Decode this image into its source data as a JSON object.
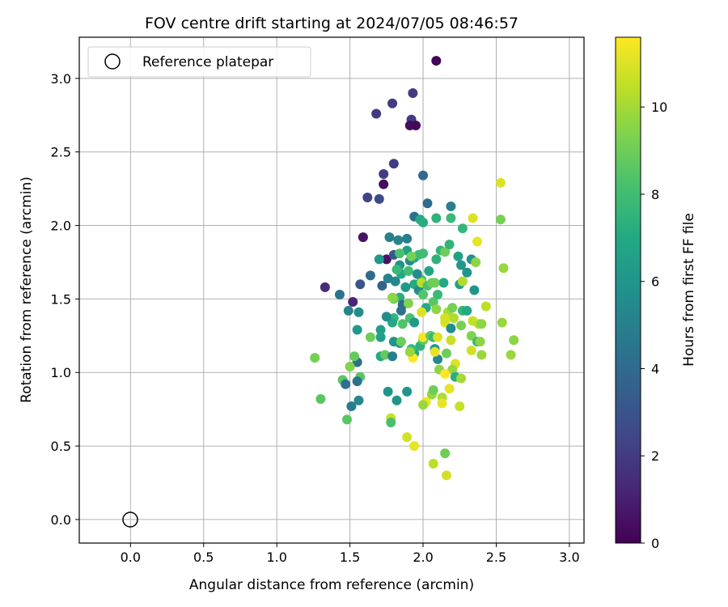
{
  "chart_data": {
    "type": "scatter",
    "title": "FOV centre drift starting at 2024/07/05 08:46:57",
    "xlabel": "Angular distance from reference (arcmin)",
    "ylabel": "Rotation from reference (arcmin)",
    "xlim": [
      -0.35,
      3.1
    ],
    "ylim": [
      -0.16,
      3.28
    ],
    "xticks": [
      "0.0",
      "0.5",
      "1.0",
      "1.5",
      "2.0",
      "2.5",
      "3.0"
    ],
    "yticks": [
      "0.0",
      "0.5",
      "1.0",
      "1.5",
      "2.0",
      "2.5",
      "3.0"
    ],
    "grid": true,
    "legend": {
      "placement": "top-left",
      "entries": [
        "Reference platepar"
      ]
    },
    "reference_point": {
      "x": 0.0,
      "y": 0.0,
      "marker": "open-circle",
      "label": "Reference platepar"
    },
    "colorbar": {
      "label": "Hours from first FF file",
      "range": [
        0,
        11.6
      ],
      "ticks": [
        "0",
        "2",
        "4",
        "6",
        "8",
        "10"
      ],
      "colormap": "viridis"
    },
    "points": [
      [
        2.09,
        3.12,
        0.1
      ],
      [
        1.68,
        2.76,
        2.0
      ],
      [
        1.79,
        2.83,
        2.0
      ],
      [
        1.93,
        2.9,
        2.0
      ],
      [
        1.92,
        2.72,
        2.0
      ],
      [
        1.91,
        2.68,
        0.4
      ],
      [
        1.95,
        2.68,
        0.3
      ],
      [
        1.8,
        2.42,
        2.0
      ],
      [
        1.73,
        2.35,
        2.0
      ],
      [
        1.73,
        2.28,
        0.4
      ],
      [
        1.62,
        2.19,
        2.3
      ],
      [
        1.7,
        2.18,
        2.6
      ],
      [
        2.0,
        2.34,
        4.0
      ],
      [
        2.03,
        2.15,
        4.0
      ],
      [
        2.19,
        2.13,
        5.0
      ],
      [
        1.94,
        2.06,
        4.4
      ],
      [
        1.98,
        2.04,
        7.0
      ],
      [
        2.0,
        2.02,
        7.2
      ],
      [
        2.09,
        2.05,
        7.4
      ],
      [
        2.19,
        2.05,
        7.8
      ],
      [
        2.34,
        2.05,
        11.0
      ],
      [
        2.53,
        2.29,
        11.0
      ],
      [
        2.53,
        2.04,
        9.2
      ],
      [
        2.37,
        1.89,
        11.2
      ],
      [
        2.55,
        1.71,
        9.8
      ],
      [
        2.27,
        1.98,
        7.6
      ],
      [
        1.59,
        1.92,
        0.6
      ],
      [
        1.75,
        1.77,
        0.6
      ],
      [
        1.33,
        1.58,
        1.4
      ],
      [
        1.52,
        1.48,
        1.2
      ],
      [
        1.57,
        1.6,
        3.0
      ],
      [
        1.43,
        1.53,
        4.4
      ],
      [
        1.64,
        1.66,
        4.0
      ],
      [
        1.72,
        1.59,
        3.6
      ],
      [
        1.8,
        1.8,
        3.2
      ],
      [
        1.83,
        1.9,
        5.2
      ],
      [
        1.77,
        1.92,
        5.0
      ],
      [
        1.7,
        1.77,
        6.2
      ],
      [
        1.84,
        1.73,
        6.0
      ],
      [
        1.91,
        1.76,
        5.6
      ],
      [
        1.89,
        1.83,
        6.6
      ],
      [
        1.94,
        1.78,
        6.6
      ],
      [
        1.97,
        1.8,
        7.8
      ],
      [
        2.04,
        1.69,
        6.8
      ],
      [
        2.09,
        1.77,
        7.4
      ],
      [
        2.12,
        1.83,
        7.6
      ],
      [
        2.15,
        1.82,
        9.0
      ],
      [
        2.18,
        1.87,
        7.5
      ],
      [
        2.24,
        1.79,
        6.6
      ],
      [
        2.26,
        1.73,
        6.2
      ],
      [
        2.3,
        1.68,
        6.0
      ],
      [
        2.33,
        1.77,
        5.8
      ],
      [
        2.36,
        1.75,
        9.6
      ],
      [
        2.35,
        1.56,
        6.0
      ],
      [
        2.25,
        1.6,
        6.6
      ],
      [
        2.14,
        1.61,
        7.0
      ],
      [
        2.08,
        1.61,
        9.0
      ],
      [
        1.99,
        1.63,
        8.2
      ],
      [
        1.94,
        1.6,
        7.0
      ],
      [
        1.88,
        1.58,
        6.2
      ],
      [
        1.81,
        1.62,
        5.4
      ],
      [
        1.76,
        1.64,
        5.2
      ],
      [
        1.85,
        1.67,
        7.0
      ],
      [
        1.82,
        1.7,
        7.8
      ],
      [
        1.9,
        1.69,
        8.0
      ],
      [
        1.97,
        1.56,
        5.6
      ],
      [
        1.84,
        1.51,
        7.2
      ],
      [
        1.8,
        1.5,
        9.0
      ],
      [
        1.86,
        1.46,
        4.0
      ],
      [
        1.85,
        1.42,
        4.2
      ],
      [
        1.9,
        1.47,
        9.4
      ],
      [
        1.91,
        1.37,
        8.2
      ],
      [
        2.02,
        1.44,
        7.0
      ],
      [
        2.07,
        1.48,
        8.6
      ],
      [
        2.09,
        1.43,
        9.6
      ],
      [
        1.99,
        1.41,
        11.0
      ],
      [
        2.17,
        1.41,
        10.0
      ],
      [
        2.2,
        1.44,
        9.2
      ],
      [
        2.21,
        1.37,
        10.2
      ],
      [
        2.15,
        1.34,
        11.0
      ],
      [
        2.19,
        1.3,
        5.6
      ],
      [
        2.26,
        1.32,
        9.2
      ],
      [
        2.27,
        1.42,
        7.6
      ],
      [
        2.3,
        1.42,
        7.0
      ],
      [
        2.34,
        1.35,
        10.6
      ],
      [
        2.38,
        1.33,
        10.4
      ],
      [
        2.4,
        1.33,
        9.6
      ],
      [
        2.43,
        1.45,
        10.4
      ],
      [
        2.33,
        1.25,
        9.4
      ],
      [
        2.37,
        1.21,
        7.8
      ],
      [
        2.39,
        1.21,
        9.6
      ],
      [
        2.4,
        1.12,
        9.8
      ],
      [
        2.33,
        1.15,
        10.8
      ],
      [
        2.6,
        1.12,
        9.8
      ],
      [
        2.62,
        1.22,
        9.6
      ],
      [
        2.54,
        1.34,
        9.8
      ],
      [
        1.8,
        1.37,
        7.6
      ],
      [
        1.86,
        1.33,
        8.4
      ],
      [
        1.94,
        1.34,
        6.2
      ],
      [
        1.79,
        1.34,
        7.0
      ],
      [
        1.75,
        1.38,
        5.6
      ],
      [
        1.71,
        1.29,
        6.4
      ],
      [
        1.71,
        1.24,
        6.6
      ],
      [
        1.64,
        1.24,
        9.0
      ],
      [
        1.55,
        1.29,
        6.2
      ],
      [
        1.56,
        1.41,
        5.6
      ],
      [
        1.49,
        1.42,
        5.2
      ],
      [
        1.55,
        1.07,
        4.2
      ],
      [
        1.53,
        1.11,
        8.8
      ],
      [
        1.5,
        1.04,
        9.4
      ],
      [
        1.57,
        0.97,
        8.6
      ],
      [
        1.45,
        0.95,
        8.6
      ],
      [
        1.47,
        0.92,
        4.2
      ],
      [
        1.55,
        0.94,
        4.4
      ],
      [
        1.51,
        0.77,
        4.8
      ],
      [
        1.56,
        0.81,
        5.4
      ],
      [
        1.48,
        0.68,
        8.6
      ],
      [
        1.3,
        0.82,
        8.6
      ],
      [
        1.26,
        1.1,
        9.2
      ],
      [
        1.71,
        1.11,
        7.0
      ],
      [
        1.74,
        1.12,
        8.8
      ],
      [
        1.79,
        1.11,
        5.0
      ],
      [
        1.8,
        1.21,
        6.0
      ],
      [
        1.84,
        1.2,
        5.8
      ],
      [
        1.85,
        1.21,
        9.0
      ],
      [
        1.94,
        1.13,
        7.0
      ],
      [
        1.92,
        1.16,
        7.8
      ],
      [
        1.98,
        1.18,
        7.4
      ],
      [
        2.0,
        1.22,
        8.6
      ],
      [
        2.0,
        1.24,
        11.4
      ],
      [
        2.05,
        1.25,
        8.8
      ],
      [
        2.07,
        1.24,
        7.8
      ],
      [
        2.08,
        1.16,
        6.0
      ],
      [
        2.1,
        1.09,
        5.4
      ],
      [
        2.08,
        1.14,
        11.2
      ],
      [
        2.1,
        1.24,
        11.0
      ],
      [
        2.16,
        1.13,
        9.0
      ],
      [
        2.19,
        1.22,
        10.6
      ],
      [
        2.15,
        1.37,
        10.8
      ],
      [
        2.22,
        1.06,
        11.0
      ],
      [
        2.2,
        1.02,
        9.8
      ],
      [
        2.22,
        0.97,
        7.2
      ],
      [
        2.26,
        0.96,
        10.0
      ],
      [
        2.11,
        1.02,
        9.6
      ],
      [
        2.15,
        0.99,
        11.6
      ],
      [
        1.93,
        1.1,
        11.6
      ],
      [
        1.91,
        1.14,
        9.8
      ],
      [
        2.06,
        0.85,
        9.8
      ],
      [
        2.07,
        0.88,
        9.0
      ],
      [
        2.13,
        0.83,
        10.2
      ],
      [
        2.18,
        0.89,
        11.2
      ],
      [
        2.13,
        0.79,
        11.2
      ],
      [
        2.02,
        0.8,
        11.4
      ],
      [
        2.0,
        0.78,
        9.8
      ],
      [
        2.25,
        0.77,
        10.6
      ],
      [
        1.89,
        0.87,
        6.0
      ],
      [
        1.76,
        0.87,
        6.0
      ],
      [
        1.82,
        0.81,
        6.0
      ],
      [
        1.89,
        0.56,
        10.8
      ],
      [
        1.94,
        0.5,
        11.2
      ],
      [
        1.78,
        0.69,
        10.6
      ],
      [
        1.78,
        0.66,
        8.2
      ],
      [
        2.07,
        0.38,
        10.4
      ],
      [
        2.15,
        0.45,
        9.0
      ],
      [
        2.16,
        0.3,
        10.8
      ],
      [
        1.99,
        1.61,
        10.4
      ],
      [
        2.03,
        1.59,
        8.2
      ],
      [
        2.06,
        1.61,
        9.0
      ],
      [
        2.1,
        1.53,
        7.8
      ],
      [
        1.79,
        1.51,
        9.6
      ],
      [
        1.92,
        1.79,
        9.2
      ],
      [
        1.89,
        1.91,
        5.0
      ],
      [
        1.96,
        1.67,
        5.6
      ],
      [
        2.0,
        1.81,
        8.0
      ],
      [
        1.84,
        1.81,
        8.2
      ],
      [
        2.0,
        1.53,
        8.4
      ],
      [
        2.27,
        1.62,
        10.2
      ]
    ]
  }
}
